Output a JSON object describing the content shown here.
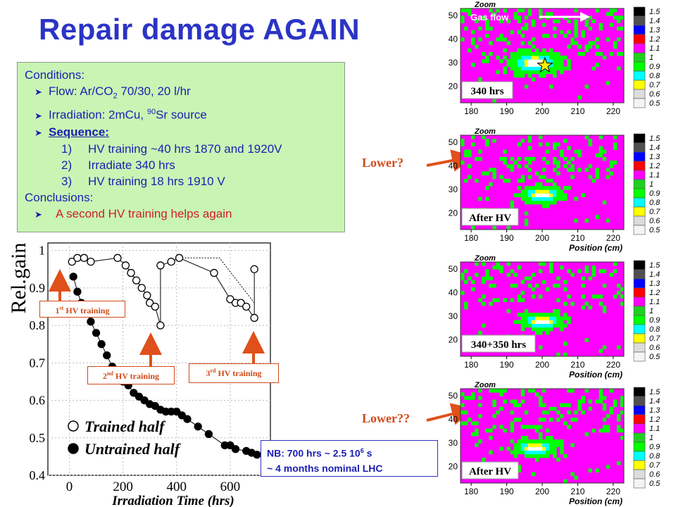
{
  "title": "Repair damage AGAIN",
  "conditions": {
    "heading": "Conditions:",
    "flow_prefix": "Flow: Ar/CO",
    "flow_sub": "2",
    "flow_suffix": " 70/30, 20 l/hr",
    "irr_prefix": "Irradiation: 2mCu, ",
    "irr_sup": "90",
    "irr_suffix": "Sr source",
    "sequence": "Sequence:",
    "steps": [
      {
        "num": "1)",
        "text": "HV training ~40 hrs 1870 and 1920V"
      },
      {
        "num": "2)",
        "text": "Irradiate 340 hrs"
      },
      {
        "num": "3)",
        "text": "HV training 18 hrs 1910 V"
      }
    ],
    "conclusions": "Conclusions:",
    "conclusion": "A second HV training helps again"
  },
  "annotations": {
    "hv1": {
      "sup": "st",
      "pre": "1",
      "text": " HV training"
    },
    "hv2": {
      "sup": "nd",
      "pre": "2",
      "text": " HV training"
    },
    "hv3": {
      "sup": "rd",
      "pre": "3",
      "text": " HV training"
    },
    "nb_line1_pre": "NB: 700 hrs ~ 2.5 10",
    "nb_line1_sup": "6",
    "nb_line1_post": " s",
    "nb_line2": "~ 4 months nominal LHC",
    "lower1": "Lower?",
    "lower2": "Lower??"
  },
  "chart_data": [
    {
      "type": "scatter",
      "title": "",
      "xlabel": "Irradiation Time (hrs)",
      "ylabel": "Rel.gain",
      "xlim": [
        -80,
        750
      ],
      "ylim": [
        0.4,
        1.02
      ],
      "xticks": [
        0,
        200,
        400,
        600
      ],
      "yticks": [
        0.4,
        0.5,
        0.6,
        0.7,
        0.8,
        0.9,
        1
      ],
      "grid": true,
      "legend_position": "bottom-left",
      "series": [
        {
          "name": "Trained half",
          "marker": "open-circle",
          "x": [
            10,
            30,
            55,
            80,
            180,
            210,
            230,
            250,
            270,
            290,
            300,
            320,
            340,
            340,
            380,
            410,
            540,
            600,
            620,
            640,
            660,
            690,
            690
          ],
          "y": [
            0.97,
            0.98,
            0.98,
            0.97,
            0.98,
            0.96,
            0.94,
            0.92,
            0.9,
            0.88,
            0.86,
            0.85,
            0.8,
            0.96,
            0.97,
            0.98,
            0.94,
            0.87,
            0.86,
            0.86,
            0.85,
            0.82,
            0.95
          ]
        },
        {
          "name": "Untrained half",
          "marker": "filled-circle",
          "x": [
            15,
            30,
            45,
            60,
            80,
            100,
            120,
            140,
            160,
            180,
            200,
            220,
            240,
            260,
            280,
            300,
            320,
            340,
            360,
            380,
            400,
            420,
            440,
            480,
            520,
            580,
            600,
            620,
            660,
            680,
            700
          ],
          "y": [
            0.93,
            0.89,
            0.86,
            0.84,
            0.81,
            0.78,
            0.75,
            0.72,
            0.69,
            0.67,
            0.65,
            0.64,
            0.62,
            0.61,
            0.6,
            0.59,
            0.585,
            0.575,
            0.57,
            0.57,
            0.57,
            0.56,
            0.55,
            0.53,
            0.51,
            0.48,
            0.48,
            0.47,
            0.465,
            0.46,
            0.455
          ]
        }
      ],
      "dotted_line": {
        "x": [
          410,
          560,
          690
        ],
        "y": [
          0.98,
          0.98,
          0.86
        ]
      }
    },
    {
      "type": "heatmap",
      "label": "340 hrs",
      "top_label": "Gas flow",
      "xticks": [
        180,
        190,
        200,
        210,
        220
      ],
      "yticks": [
        20,
        30,
        40,
        50
      ],
      "hotspot": [
        198,
        30
      ],
      "spread": [
        6,
        4
      ],
      "star": true,
      "xlabel": "",
      "zoom": "Zoom",
      "colorbar": [
        "1.5",
        "1.4",
        "1.3",
        "1.2",
        "1.1",
        "1",
        "0.9",
        "0.8",
        "0.7",
        "0.6",
        "0.5"
      ]
    },
    {
      "type": "heatmap",
      "label": "After HV",
      "xticks": [
        180,
        190,
        200,
        210,
        220
      ],
      "yticks": [
        20,
        30,
        40,
        50
      ],
      "hotspot": [
        200,
        28
      ],
      "spread": [
        5,
        3
      ],
      "xlabel": "Position (cm)",
      "zoom": "Zoom",
      "colorbar": [
        "1.5",
        "1.4",
        "1.3",
        "1.2",
        "1.1",
        "1",
        "0.9",
        "0.8",
        "0.7",
        "0.6",
        "0.5"
      ]
    },
    {
      "type": "heatmap",
      "label": "340+350 hrs",
      "xticks": [
        180,
        190,
        200,
        210,
        220
      ],
      "yticks": [
        20,
        30,
        40,
        50
      ],
      "hotspot": [
        200,
        28
      ],
      "spread": [
        5,
        3
      ],
      "xlabel": "Position (cm)",
      "zoom": "Zoom",
      "colorbar": [
        "1.5",
        "1.4",
        "1.3",
        "1.2",
        "1.1",
        "1",
        "0.9",
        "0.8",
        "0.7",
        "0.6",
        "0.5"
      ]
    },
    {
      "type": "heatmap",
      "label": "After HV",
      "xticks": [
        180,
        190,
        200,
        210,
        220
      ],
      "yticks": [
        20,
        30,
        40,
        50
      ],
      "hotspot": [
        198,
        28
      ],
      "spread": [
        5,
        3
      ],
      "xlabel": "Position (cm)",
      "zoom": "Zoom",
      "colorbar": [
        "1.5",
        "1.4",
        "1.3",
        "1.2",
        "1.1",
        "1",
        "0.9",
        "0.8",
        "0.7",
        "0.6",
        "0.5"
      ]
    }
  ]
}
